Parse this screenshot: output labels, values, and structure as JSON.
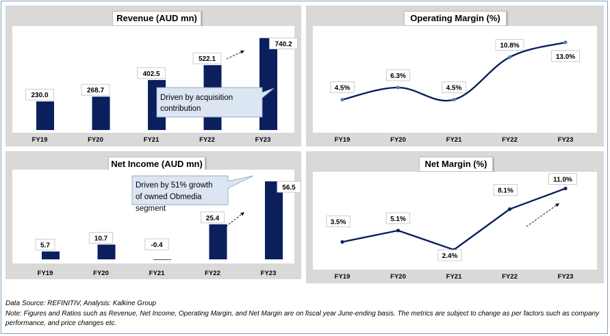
{
  "charts": [
    {
      "id": "revenue",
      "title": "Revenue (AUD mn)",
      "type": "bar",
      "color": "#0a1f5c",
      "categories": [
        "FY19",
        "FY20",
        "FY21",
        "FY22",
        "FY23"
      ],
      "values": [
        230.0,
        268.7,
        402.5,
        522.1,
        740.2
      ],
      "labels": [
        "230.0",
        "268.7",
        "402.5",
        "522.1",
        "740.2"
      ],
      "ylim": [
        0,
        760
      ],
      "callout": "Driven by acquisition contribution"
    },
    {
      "id": "operating-margin",
      "title": "Operating Margin (%)",
      "type": "line",
      "color": "#0a1f5c",
      "categories": [
        "FY19",
        "FY20",
        "FY21",
        "FY22",
        "FY23"
      ],
      "values": [
        4.5,
        6.3,
        4.5,
        10.8,
        13.0
      ],
      "labels": [
        "4.5%",
        "6.3%",
        "4.5%",
        "10.8%",
        "13.0%"
      ],
      "ylim": [
        0,
        14
      ]
    },
    {
      "id": "net-income",
      "title": "Net Income (AUD mn)",
      "type": "bar",
      "color": "#0a1f5c",
      "categories": [
        "FY19",
        "FY20",
        "FY21",
        "FY22",
        "FY23"
      ],
      "values": [
        5.7,
        10.7,
        -0.4,
        25.4,
        56.5
      ],
      "labels": [
        "5.7",
        "10.7",
        "-0.4",
        "25.4",
        "56.5"
      ],
      "ylim": [
        -1,
        58
      ],
      "callout": "Driven by 51% growth of owned Obmedia segment"
    },
    {
      "id": "net-margin",
      "title": "Net Margin (%)",
      "type": "line",
      "color": "#0a1f5c",
      "categories": [
        "FY19",
        "FY20",
        "FY21",
        "FY22",
        "FY23"
      ],
      "values": [
        3.5,
        5.1,
        2.4,
        8.1,
        11.0
      ],
      "labels": [
        "3.5%",
        "5.1%",
        "2.4%",
        "8.1%",
        "11.0%"
      ],
      "ylim": [
        0,
        12
      ]
    }
  ],
  "footer": {
    "source": "Data Source: REFINITIV, Analysis: Kalkine Group",
    "note": "Note: Figures and Ratios such as Revenue, Net Income, Operating Margin, and Net Margin are on fiscal year June-ending basis. The metrics are subject to change as per factors such as company performance, and price changes etc."
  }
}
